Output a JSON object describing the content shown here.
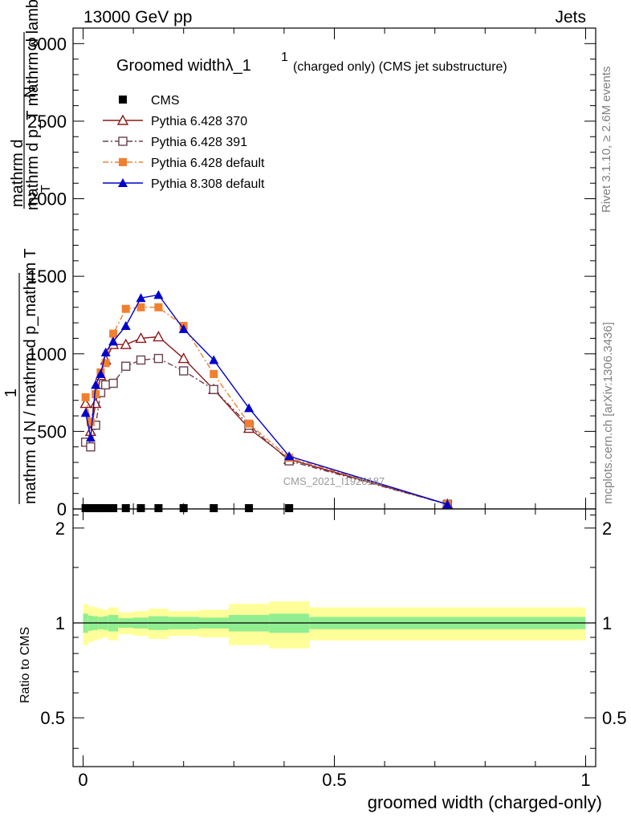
{
  "header": {
    "left": "13000 GeV pp",
    "right": "Jets"
  },
  "side_labels": {
    "rivet": "Rivet 3.1.10, ≥ 2.6M events",
    "mcplots": "mcplots.cern.ch [arXiv:1306.3436]"
  },
  "watermark": "CMS_2021_I1920187",
  "chart_data": {
    "type": "line",
    "title": "Groomed widthλ_1",
    "title_super": "1",
    "subtitle": "(charged only) (CMS jet substructure)",
    "ylabel_numerator_top": "mathrm d",
    "ylabel_numerator_N": "N",
    "ylabel_denominator_top": "mathrm d p_T mathrm d lambda",
    "ylabel_denominator_T": "T",
    "ylabel_one": "1",
    "ylabel_frac_den": "mathrm d N / mathrm d p_mathrm T",
    "xlabel": "groomed width (charged-only)",
    "ratio_ylabel": "Ratio to CMS",
    "xlim": [
      -0.02,
      1.02
    ],
    "ylim": [
      0,
      3100
    ],
    "ratio_ylim": [
      0.35,
      2.3
    ],
    "x_ticks": [
      0,
      0.5,
      1
    ],
    "x_tick_labels": [
      "0",
      "0.5",
      "1"
    ],
    "y_ticks": [
      0,
      500,
      1000,
      1500,
      2000,
      2500,
      3000
    ],
    "y_tick_labels": [
      "0",
      "500",
      "1000",
      "1500",
      "2000",
      "2500",
      "3000"
    ],
    "ratio_ticks": [
      0.5,
      1,
      2
    ],
    "ratio_tick_labels": [
      "0.5",
      "1",
      "2"
    ],
    "bins": [
      0,
      0.01,
      0.02,
      0.03,
      0.04,
      0.05,
      0.07,
      0.1,
      0.13,
      0.17,
      0.23,
      0.29,
      0.37,
      0.45,
      1.0
    ],
    "ratio_band_inner": [
      0.07,
      0.055,
      0.05,
      0.045,
      0.05,
      0.06,
      0.035,
      0.04,
      0.05,
      0.045,
      0.04,
      0.06,
      0.07,
      0.045
    ],
    "ratio_band_outer": [
      0.15,
      0.13,
      0.12,
      0.11,
      0.1,
      0.12,
      0.08,
      0.09,
      0.11,
      0.09,
      0.1,
      0.15,
      0.17,
      0.12
    ],
    "series": [
      {
        "name": "CMS",
        "color": "#000000",
        "marker": "square-filled",
        "line": "none",
        "x": [
          0.005,
          0.015,
          0.025,
          0.035,
          0.045,
          0.06,
          0.085,
          0.115,
          0.15,
          0.2,
          0.26,
          0.33,
          0.41
        ],
        "y": [
          5,
          5,
          5,
          5,
          5,
          5,
          5,
          5,
          5,
          5,
          5,
          5,
          5
        ]
      },
      {
        "name": "Pythia 6.428 370",
        "color": "#8b1a1a",
        "marker": "triangle-open",
        "line": "solid",
        "x": [
          0.005,
          0.015,
          0.025,
          0.035,
          0.045,
          0.06,
          0.085,
          0.115,
          0.15,
          0.2,
          0.26,
          0.33,
          0.41,
          0.725
        ],
        "y": [
          680,
          500,
          680,
          860,
          960,
          1060,
          1060,
          1100,
          1110,
          970,
          770,
          520,
          320,
          30
        ]
      },
      {
        "name": "Pythia 6.428 391",
        "color": "#6b4050",
        "marker": "square-open",
        "line": "dashdot",
        "x": [
          0.005,
          0.015,
          0.025,
          0.035,
          0.045,
          0.06,
          0.085,
          0.115,
          0.15,
          0.2,
          0.26,
          0.33,
          0.41,
          0.725
        ],
        "y": [
          430,
          400,
          540,
          750,
          800,
          810,
          920,
          960,
          970,
          890,
          770,
          540,
          310,
          30
        ]
      },
      {
        "name": "Pythia 6.428 default",
        "color": "#f08030",
        "marker": "square-filled",
        "line": "dashdot",
        "x": [
          0.005,
          0.015,
          0.025,
          0.035,
          0.045,
          0.06,
          0.085,
          0.115,
          0.15,
          0.2,
          0.26,
          0.33,
          0.41,
          0.725
        ],
        "y": [
          720,
          560,
          740,
          880,
          940,
          1130,
          1290,
          1300,
          1300,
          1180,
          870,
          550,
          330,
          30
        ]
      },
      {
        "name": "Pythia 8.308 default",
        "color": "#0000cc",
        "marker": "triangle-filled",
        "line": "solid",
        "x": [
          0.005,
          0.015,
          0.025,
          0.035,
          0.045,
          0.06,
          0.085,
          0.115,
          0.15,
          0.2,
          0.26,
          0.33,
          0.41,
          0.725
        ],
        "y": [
          620,
          460,
          800,
          870,
          1010,
          1080,
          1180,
          1360,
          1380,
          1160,
          960,
          650,
          340,
          30
        ]
      }
    ]
  }
}
